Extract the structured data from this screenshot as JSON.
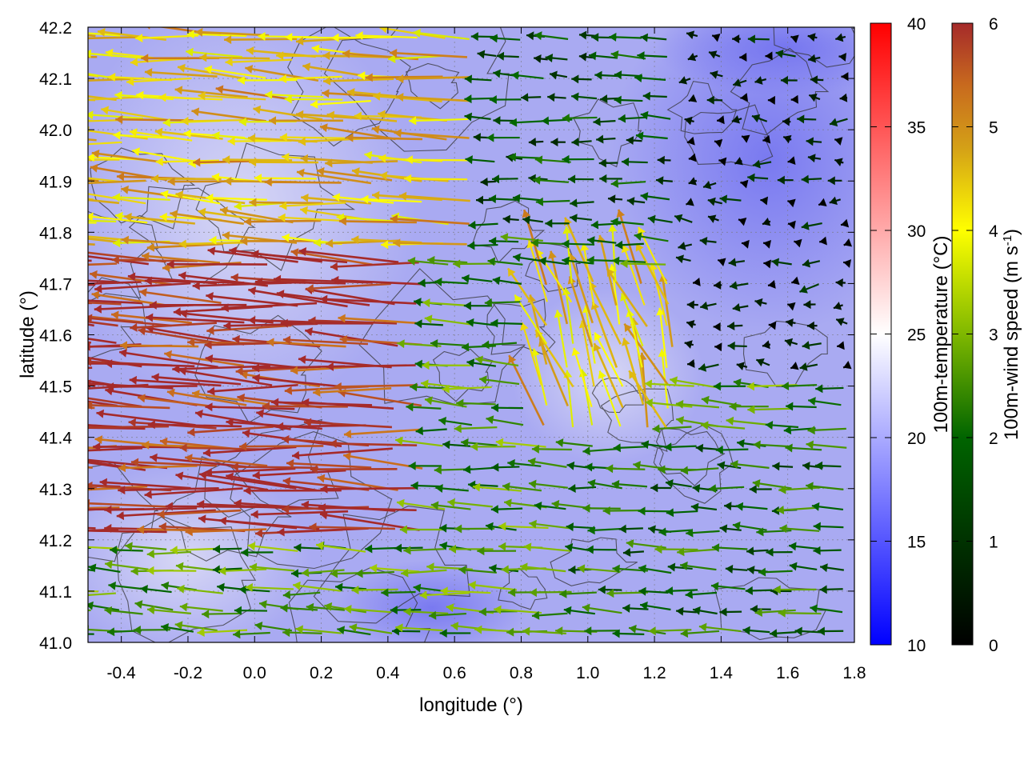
{
  "chart_data": {
    "type": "map",
    "xlabel": "longitude (°)",
    "ylabel": "latitude (°)",
    "xlim": [
      -0.5,
      1.8
    ],
    "ylim": [
      41.0,
      42.2
    ],
    "xticks": [
      "-0.4",
      "-0.2",
      "0.0",
      "0.2",
      "0.4",
      "0.6",
      "0.8",
      "1.0",
      "1.2",
      "1.4",
      "1.6",
      "1.8"
    ],
    "xtick_values": [
      -0.4,
      -0.2,
      0.0,
      0.2,
      0.4,
      0.6,
      0.8,
      1.0,
      1.2,
      1.4,
      1.6,
      1.8
    ],
    "yticks": [
      "41.0",
      "41.1",
      "41.2",
      "41.3",
      "41.4",
      "41.5",
      "41.6",
      "41.7",
      "41.8",
      "41.9",
      "42.0",
      "42.1",
      "42.2"
    ],
    "ytick_values": [
      41.0,
      41.1,
      41.2,
      41.3,
      41.4,
      41.5,
      41.6,
      41.7,
      41.8,
      41.9,
      42.0,
      42.1,
      42.2
    ],
    "grid": true,
    "background_field": {
      "name": "100m-temperature",
      "colorbar_label": "100m-temperature (°C)",
      "range": [
        10,
        40
      ],
      "ticks": [
        "10",
        "15",
        "20",
        "25",
        "30",
        "35",
        "40"
      ],
      "tick_values": [
        10,
        15,
        20,
        25,
        30,
        35,
        40
      ],
      "colormap": [
        "#0000ff",
        "#ffffff",
        "#ff0000"
      ],
      "typical_value": 19
    },
    "vector_field": {
      "name": "100m-wind speed",
      "colorbar_label_main": "100m-wind speed (m s",
      "colorbar_label_sup": "-1",
      "colorbar_label_end": ")",
      "range": [
        0,
        6
      ],
      "ticks": [
        "0",
        "1",
        "2",
        "3",
        "4",
        "5",
        "6"
      ],
      "tick_values": [
        0,
        1,
        2,
        3,
        4,
        5,
        6
      ],
      "colormap": [
        "#000000",
        "#006400",
        "#7fb800",
        "#ffff00",
        "#d4a017",
        "#c86a1e",
        "#a52a2a"
      ],
      "regions": [
        {
          "lon": [
            -0.5,
            0.5
          ],
          "lat": [
            41.2,
            41.75
          ],
          "speed": 6,
          "direction": "west"
        },
        {
          "lon": [
            -0.5,
            0.7
          ],
          "lat": [
            41.75,
            42.2
          ],
          "speed": 4.5,
          "direction": "west"
        },
        {
          "lon": [
            0.7,
            1.3
          ],
          "lat": [
            41.8,
            42.2
          ],
          "speed": 1.5,
          "direction": "west"
        },
        {
          "lon": [
            1.3,
            1.8
          ],
          "lat": [
            41.5,
            42.2
          ],
          "speed": 0.5,
          "direction": "calm"
        },
        {
          "lon": [
            0.8,
            1.3
          ],
          "lat": [
            41.4,
            41.7
          ],
          "speed": 4.5,
          "direction": "north"
        },
        {
          "lon": [
            1.0,
            1.8
          ],
          "lat": [
            41.0,
            41.4
          ],
          "speed": 2,
          "direction": "west"
        }
      ]
    }
  }
}
